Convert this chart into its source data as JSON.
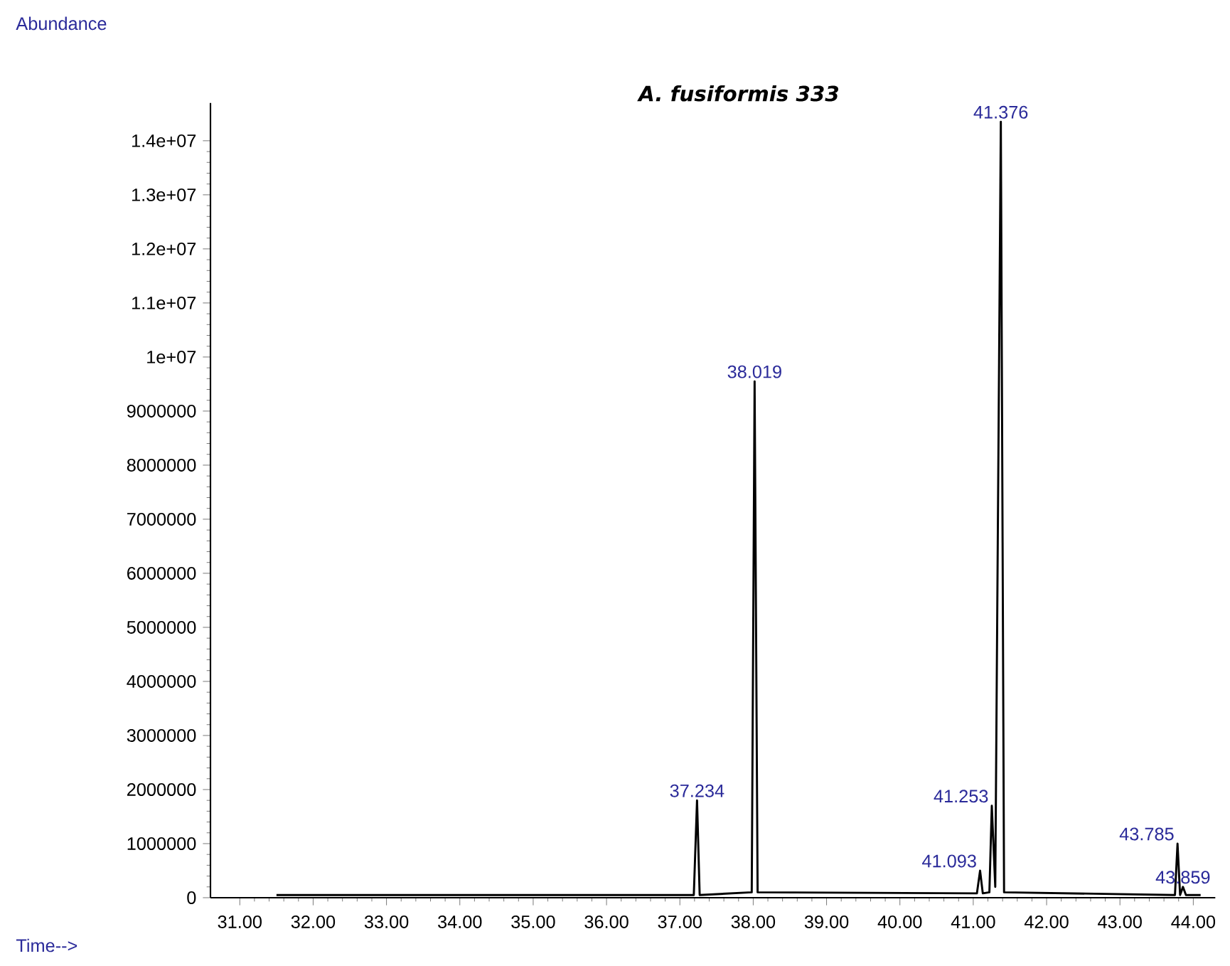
{
  "chart_data": {
    "type": "line",
    "title": "A. fusiformis 333",
    "xlabel": "Time-->",
    "ylabel": "Abundance",
    "x": [
      31.5,
      37.19,
      37.234,
      37.27,
      37.98,
      38.019,
      38.06,
      41.05,
      41.093,
      41.13,
      41.22,
      41.253,
      41.3,
      41.376,
      41.42,
      43.75,
      43.785,
      43.82,
      43.859,
      43.9,
      44.1
    ],
    "series": [
      {
        "color": "#000000",
        "values": [
          50000,
          50000,
          1800000,
          50000,
          100000,
          9550000,
          100000,
          80000,
          500000,
          80000,
          100000,
          1700000,
          200000,
          14350000,
          100000,
          50000,
          1000000,
          50000,
          200000,
          50000,
          50000
        ]
      }
    ],
    "xlim": [
      30.6,
      44.3
    ],
    "ylim": [
      0,
      14700000
    ],
    "xticks": [
      {
        "value": 31,
        "label": "31.00"
      },
      {
        "value": 32,
        "label": "32.00"
      },
      {
        "value": 33,
        "label": "33.00"
      },
      {
        "value": 34,
        "label": "34.00"
      },
      {
        "value": 35,
        "label": "35.00"
      },
      {
        "value": 36,
        "label": "36.00"
      },
      {
        "value": 37,
        "label": "37.00"
      },
      {
        "value": 38,
        "label": "38.00"
      },
      {
        "value": 39,
        "label": "39.00"
      },
      {
        "value": 40,
        "label": "40.00"
      },
      {
        "value": 41,
        "label": "41.00"
      },
      {
        "value": 42,
        "label": "42.00"
      },
      {
        "value": 43,
        "label": "43.00"
      },
      {
        "value": 44,
        "label": "44.00"
      }
    ],
    "yticks": [
      0,
      1000000,
      2000000,
      3000000,
      4000000,
      5000000,
      6000000,
      7000000,
      8000000,
      9000000,
      {
        "value": 10000000,
        "label": "1e+07"
      },
      {
        "value": 11000000,
        "label": "1.1e+07"
      },
      {
        "value": 12000000,
        "label": "1.2e+07"
      },
      {
        "value": 13000000,
        "label": "1.3e+07"
      },
      {
        "value": 14000000,
        "label": "1.4e+07"
      }
    ],
    "annotations": [
      {
        "text": "37.234",
        "x": 37.234,
        "y": 1800000
      },
      {
        "text": "38.019",
        "x": 38.019,
        "y": 9550000
      },
      {
        "text": "41.376",
        "x": 41.376,
        "y": 14350000
      },
      {
        "text": "41.253",
        "x": 41.253,
        "y": 1700000
      },
      {
        "text": "41.093",
        "x": 41.093,
        "y": 500000
      },
      {
        "text": "43.785",
        "x": 43.785,
        "y": 1000000
      },
      {
        "text": "43.859",
        "x": 43.859,
        "y": 200000
      }
    ],
    "grid": false,
    "marker": "none",
    "line_style": "solid"
  }
}
